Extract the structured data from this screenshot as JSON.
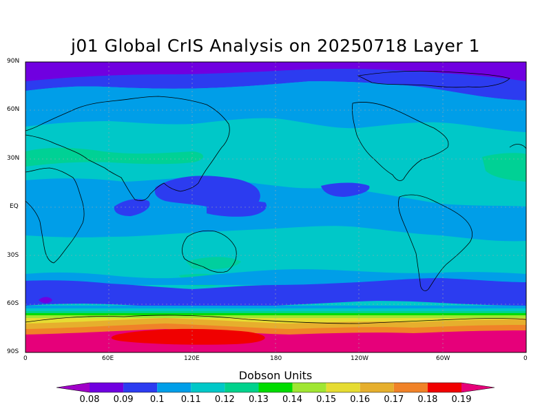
{
  "title": "j01 Global CrIS Analysis on 20250718 Layer 1",
  "lat_labels": [
    "90N",
    "60N",
    "30N",
    "EQ",
    "30S",
    "60S",
    "90S"
  ],
  "lon_labels": [
    "0",
    "60E",
    "120E",
    "180",
    "120W",
    "60W",
    "0"
  ],
  "colorbar": {
    "title": "Dobson Units",
    "labels": [
      "0.08",
      "0.09",
      "0.1",
      "0.11",
      "0.12",
      "0.13",
      "0.14",
      "0.15",
      "0.16",
      "0.17",
      "0.18",
      "0.19"
    ],
    "colors": [
      "#a000c8",
      "#7000e0",
      "#2c3cf0",
      "#009ee8",
      "#00c8c8",
      "#00d28c",
      "#00dc00",
      "#a0e632",
      "#e6dc32",
      "#e6af2d",
      "#f08228",
      "#f00000",
      "#e6007a"
    ]
  }
}
